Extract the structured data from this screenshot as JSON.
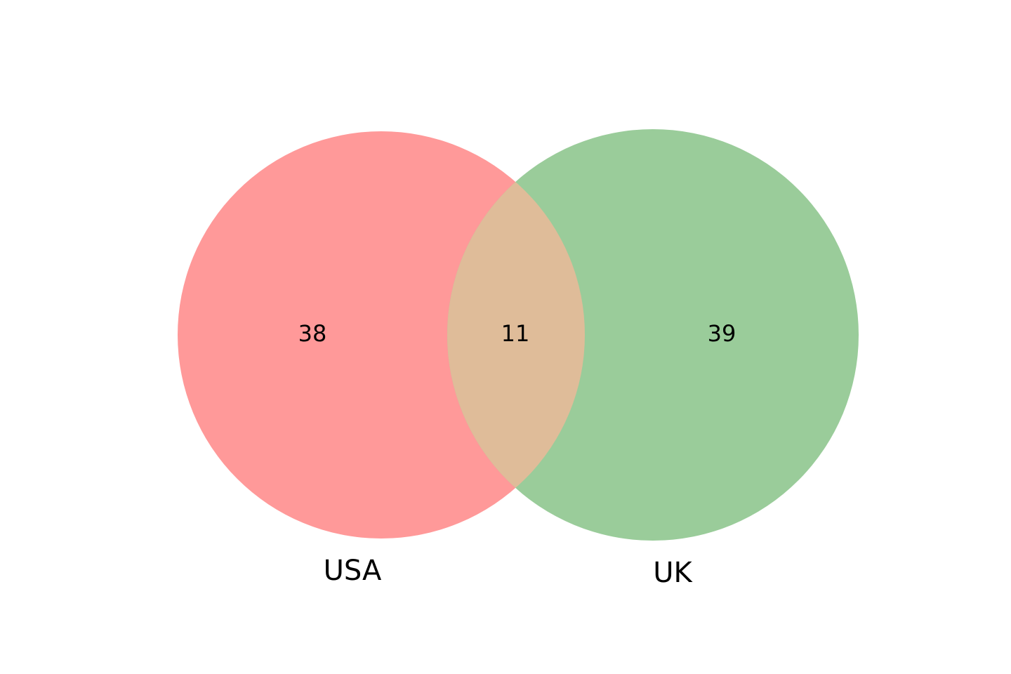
{
  "venn": {
    "sets": [
      {
        "label": "USA",
        "only_count": "38",
        "color": "#ff9999"
      },
      {
        "label": "UK",
        "only_count": "39",
        "color": "#9acc9a"
      }
    ],
    "intersection": {
      "count": "11",
      "color": "#dfbc99"
    }
  }
}
